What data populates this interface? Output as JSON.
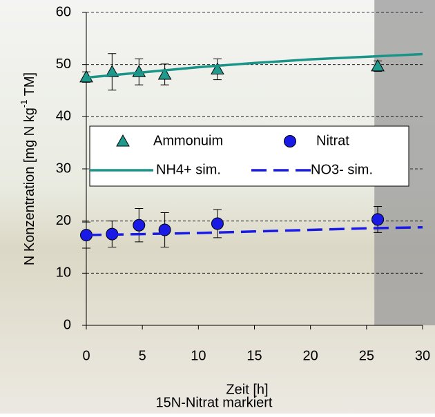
{
  "chart_data": {
    "type": "scatter",
    "ylabel": [
      "N Konzentration  [mg N kg",
      "-1",
      " TM]"
    ],
    "xlabel": "Zeit [h]",
    "caption": "15N-Nitrat markiert",
    "xlim": [
      0,
      30
    ],
    "xticks": [
      0,
      5,
      10,
      15,
      20,
      25,
      30
    ],
    "ylim": [
      0,
      60
    ],
    "yticks": [
      0,
      10,
      20,
      30,
      40,
      50,
      60
    ],
    "grid": true,
    "shaded_x": [
      25.7,
      30
    ],
    "series": [
      {
        "name": "Ammonuim",
        "color": "#1f9a8c",
        "marker": "triangle",
        "x": [
          0,
          2.3,
          4.7,
          7,
          11.7,
          26
        ],
        "values": [
          47.6,
          48.6,
          48.6,
          48.1,
          49.1,
          49.7
        ],
        "errors": [
          1,
          3.5,
          2.5,
          2,
          2,
          1
        ]
      },
      {
        "name": "Nitrat",
        "color": "#1a1ae6",
        "marker": "circle",
        "x": [
          0,
          2.3,
          4.7,
          7,
          11.7,
          26
        ],
        "values": [
          17.3,
          17.5,
          19.2,
          18.3,
          19.5,
          20.3
        ],
        "errors": [
          2.5,
          2.5,
          3.2,
          3.3,
          2.7,
          2.5
        ]
      },
      {
        "name": "NH4+ sim.",
        "color": "#1a9488",
        "style": "solid",
        "x": [
          0,
          5,
          10,
          15,
          20,
          25,
          30
        ],
        "values": [
          47.5,
          48.5,
          49.5,
          50.3,
          51,
          51.5,
          52
        ]
      },
      {
        "name": "NO3- sim.",
        "color": "#1a1ae6",
        "style": "dashed",
        "x": [
          0,
          5,
          10,
          15,
          20,
          25,
          30
        ],
        "values": [
          17.3,
          17.5,
          17.7,
          18,
          18.3,
          18.6,
          18.8
        ]
      }
    ]
  }
}
